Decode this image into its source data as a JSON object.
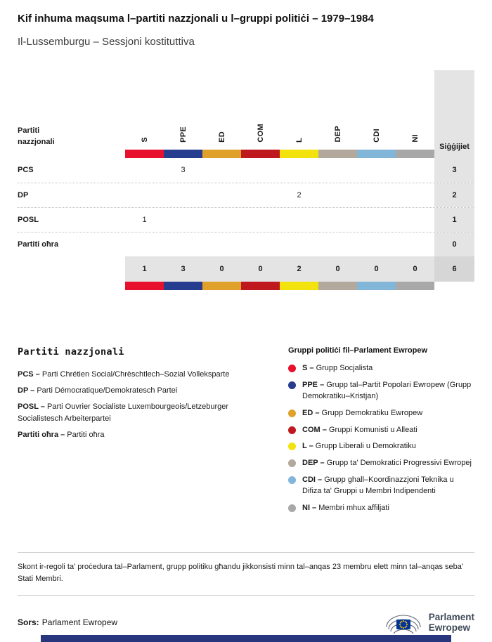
{
  "page": {
    "title": "Kif inhuma maqsuma l–partiti nazzjonali u l–gruppi politiċi – 1979–1984",
    "subtitle": "Il-Lussemburgu – Sessjoni kostituttiva"
  },
  "chart_data": {
    "type": "table",
    "title": "Kif inhuma maqsuma l–partiti nazzjonali u l–gruppi politiċi – 1979–1984",
    "subtitle": "Il-Lussemburgu – Sessjoni kostituttiva",
    "row_header": "Partiti nazzjonali",
    "seats_column": "Siġġijiet",
    "columns": [
      "S",
      "PPE",
      "ED",
      "COM",
      "L",
      "DEP",
      "CDI",
      "NI"
    ],
    "group_colors": {
      "S": "#e8112d",
      "PPE": "#253c8f",
      "ED": "#dfa129",
      "COM": "#c0181f",
      "L": "#f2e30e",
      "DEP": "#b3a89c",
      "CDI": "#82b6d9",
      "NI": "#a8a8a8"
    },
    "rows": [
      {
        "party": "PCS",
        "values": [
          null,
          3,
          null,
          null,
          null,
          null,
          null,
          null
        ],
        "seats": 3
      },
      {
        "party": "DP",
        "values": [
          null,
          null,
          null,
          null,
          2,
          null,
          null,
          null
        ],
        "seats": 2
      },
      {
        "party": "POSL",
        "values": [
          1,
          null,
          null,
          null,
          null,
          null,
          null,
          null
        ],
        "seats": 1
      },
      {
        "party": "Partiti oħra",
        "values": [
          null,
          null,
          null,
          null,
          null,
          null,
          null,
          null
        ],
        "seats": 0
      }
    ],
    "totals": {
      "values": [
        1,
        3,
        0,
        0,
        2,
        0,
        0,
        0
      ],
      "seats": 6
    }
  },
  "legend_parties": {
    "title": "Partiti nazzjonali",
    "separator": " – ",
    "items": [
      {
        "code": "PCS",
        "desc": "Parti Chrétien Social/Chrèschtlech–Sozial Volleksparte"
      },
      {
        "code": "DP",
        "desc": "Parti Démocratique/Demokratesch Partei"
      },
      {
        "code": "POSL",
        "desc": "Parti Ouvrier Socialiste Luxembourgeois/Letzeburger Socialistesch Arbeiterpartei"
      },
      {
        "code": "Partiti oħra",
        "desc": "Partiti oħra"
      }
    ]
  },
  "legend_groups": {
    "title": "Gruppi politiċi fil–Parlament Ewropew",
    "separator": " – ",
    "items": [
      {
        "code": "S",
        "desc": "Grupp Socjalista",
        "color": "#e8112d"
      },
      {
        "code": "PPE",
        "desc": "Grupp tal–Partit Popolari Ewropew (Grupp Demokratiku–Kristjan)",
        "color": "#253c8f"
      },
      {
        "code": "ED",
        "desc": "Grupp Demokratiku Ewropew",
        "color": "#dfa129"
      },
      {
        "code": "COM",
        "desc": "Gruppi Komunisti u Alleati",
        "color": "#c0181f"
      },
      {
        "code": "L",
        "desc": "Grupp Liberali u Demokratiku",
        "color": "#f2e30e"
      },
      {
        "code": "DEP",
        "desc": "Grupp ta' Demokratici Progressivi Ewropej",
        "color": "#b3a89c"
      },
      {
        "code": "CDI",
        "desc": "Grupp ghall–Koordinazzjoni Teknika u Difiza ta' Gruppi u Membri Indipendenti",
        "color": "#82b6d9"
      },
      {
        "code": "NI",
        "desc": "Membri mhux affiljati",
        "color": "#a8a8a8"
      }
    ]
  },
  "footnote": "Skont ir-regoli ta' proċedura tal–Parlament, grupp politiku għandu jikkonsisti minn tal–anqas 23 membru elett minn tal–anqas seba' Stati Membri.",
  "source": {
    "label": "Sors:",
    "value": "Parlament Ewropew"
  },
  "logo": {
    "line1": "Parlament",
    "line2": "Ewropew"
  }
}
